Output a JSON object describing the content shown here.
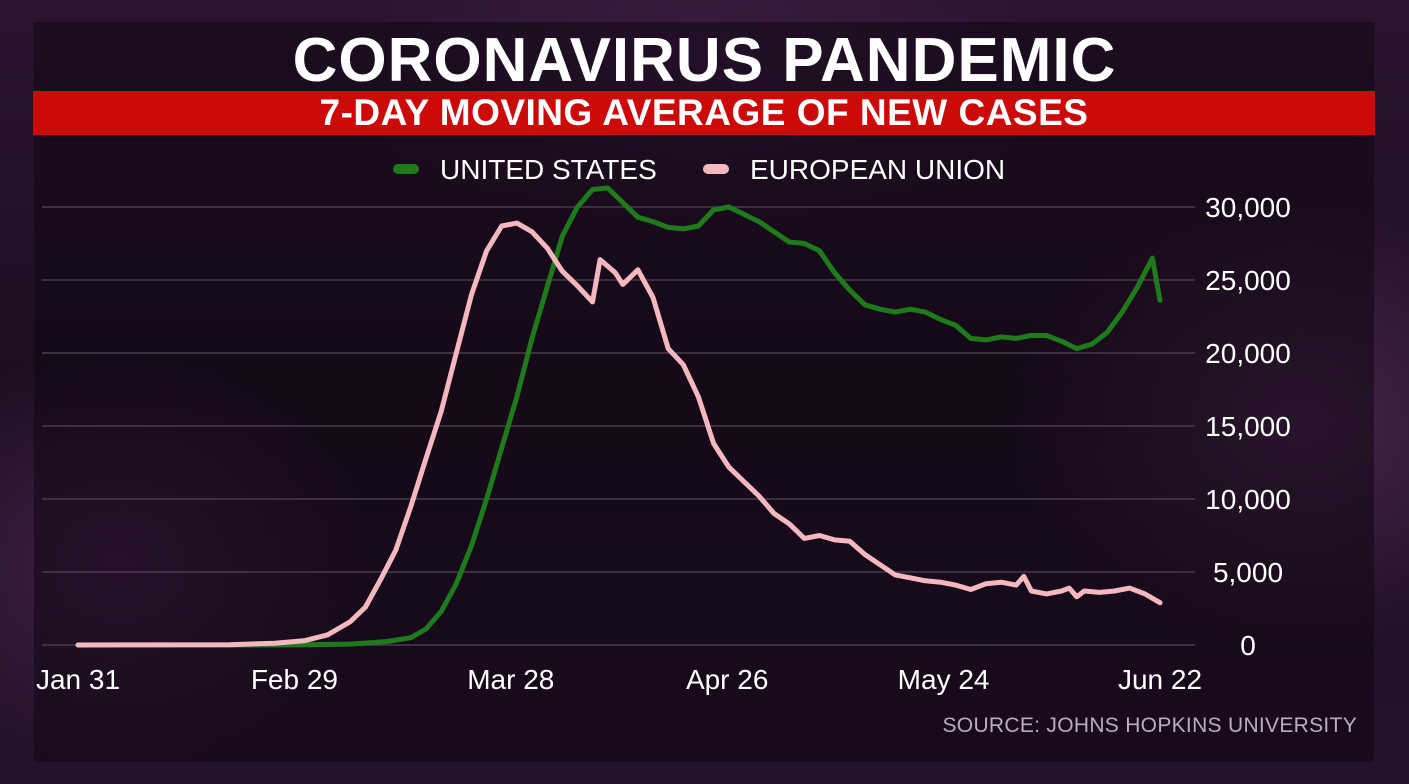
{
  "header": {
    "title": "CORONAVIRUS PANDEMIC",
    "subtitle": "7-DAY MOVING AVERAGE OF NEW CASES"
  },
  "source": "SOURCE: JOHNS HOPKINS UNIVERSITY",
  "colors": {
    "background": "#1c0e20",
    "subtitle_bar": "#cc0a0a",
    "us_line": "#1e7a1a",
    "eu_line": "#f5b8bf",
    "grid": "#4a3a4e"
  },
  "chart_data": {
    "type": "line",
    "title": "7-DAY MOVING AVERAGE OF NEW CASES",
    "xlabel": "",
    "ylabel": "",
    "x_tick_labels": [
      "Jan 31",
      "Feb 29",
      "Mar 28",
      "Apr 26",
      "May 24",
      "Jun 22"
    ],
    "x_range": [
      "2020-01-31",
      "2020-06-22"
    ],
    "y_ticks": [
      0,
      5000,
      10000,
      15000,
      20000,
      25000,
      30000
    ],
    "y_tick_labels": [
      "0",
      "5,000",
      "10,000",
      "15,000",
      "20,000",
      "25,000",
      "30,000"
    ],
    "ylim": [
      0,
      30000
    ],
    "y_axis_side": "right",
    "grid": "horizontal",
    "legend": {
      "placement": "top-center",
      "entries": [
        "UNITED STATES",
        "EUROPEAN UNION"
      ]
    },
    "series": [
      {
        "name": "UNITED STATES",
        "color": "#1e7a1a",
        "points": [
          [
            "2020-01-31",
            0
          ],
          [
            "2020-02-15",
            0
          ],
          [
            "2020-02-29",
            10
          ],
          [
            "2020-03-07",
            60
          ],
          [
            "2020-03-12",
            250
          ],
          [
            "2020-03-15",
            500
          ],
          [
            "2020-03-17",
            1100
          ],
          [
            "2020-03-19",
            2300
          ],
          [
            "2020-03-21",
            4200
          ],
          [
            "2020-03-23",
            6800
          ],
          [
            "2020-03-25",
            10000
          ],
          [
            "2020-03-27",
            13500
          ],
          [
            "2020-03-29",
            17000
          ],
          [
            "2020-03-31",
            21000
          ],
          [
            "2020-04-02",
            24500
          ],
          [
            "2020-04-04",
            28000
          ],
          [
            "2020-04-06",
            30000
          ],
          [
            "2020-04-08",
            31200
          ],
          [
            "2020-04-10",
            31300
          ],
          [
            "2020-04-12",
            30300
          ],
          [
            "2020-04-14",
            29300
          ],
          [
            "2020-04-16",
            29000
          ],
          [
            "2020-04-18",
            28600
          ],
          [
            "2020-04-20",
            28500
          ],
          [
            "2020-04-22",
            28700
          ],
          [
            "2020-04-24",
            29800
          ],
          [
            "2020-04-26",
            30000
          ],
          [
            "2020-04-28",
            29500
          ],
          [
            "2020-04-30",
            29000
          ],
          [
            "2020-05-02",
            28300
          ],
          [
            "2020-05-04",
            27600
          ],
          [
            "2020-05-06",
            27500
          ],
          [
            "2020-05-08",
            27000
          ],
          [
            "2020-05-10",
            25500
          ],
          [
            "2020-05-12",
            24300
          ],
          [
            "2020-05-14",
            23300
          ],
          [
            "2020-05-16",
            23000
          ],
          [
            "2020-05-18",
            22800
          ],
          [
            "2020-05-20",
            23000
          ],
          [
            "2020-05-22",
            22800
          ],
          [
            "2020-05-24",
            22300
          ],
          [
            "2020-05-26",
            21900
          ],
          [
            "2020-05-28",
            21000
          ],
          [
            "2020-05-30",
            20900
          ],
          [
            "2020-06-01",
            21100
          ],
          [
            "2020-06-03",
            21000
          ],
          [
            "2020-06-05",
            21200
          ],
          [
            "2020-06-07",
            21200
          ],
          [
            "2020-06-09",
            20800
          ],
          [
            "2020-06-11",
            20300
          ],
          [
            "2020-06-13",
            20600
          ],
          [
            "2020-06-15",
            21400
          ],
          [
            "2020-06-17",
            22800
          ],
          [
            "2020-06-19",
            24500
          ],
          [
            "2020-06-21",
            26500
          ],
          [
            "2020-06-22",
            23600
          ]
        ]
      },
      {
        "name": "EUROPEAN UNION",
        "color": "#f5b8bf",
        "points": [
          [
            "2020-01-31",
            0
          ],
          [
            "2020-02-20",
            20
          ],
          [
            "2020-02-26",
            120
          ],
          [
            "2020-03-01",
            300
          ],
          [
            "2020-03-04",
            700
          ],
          [
            "2020-03-07",
            1600
          ],
          [
            "2020-03-09",
            2600
          ],
          [
            "2020-03-11",
            4500
          ],
          [
            "2020-03-13",
            6500
          ],
          [
            "2020-03-15",
            9500
          ],
          [
            "2020-03-17",
            12800
          ],
          [
            "2020-03-19",
            16000
          ],
          [
            "2020-03-21",
            20000
          ],
          [
            "2020-03-23",
            24000
          ],
          [
            "2020-03-25",
            27000
          ],
          [
            "2020-03-27",
            28700
          ],
          [
            "2020-03-29",
            28900
          ],
          [
            "2020-03-31",
            28300
          ],
          [
            "2020-04-02",
            27200
          ],
          [
            "2020-04-04",
            25600
          ],
          [
            "2020-04-06",
            24600
          ],
          [
            "2020-04-08",
            23500
          ],
          [
            "2020-04-09",
            26400
          ],
          [
            "2020-04-11",
            25500
          ],
          [
            "2020-04-12",
            24700
          ],
          [
            "2020-04-14",
            25700
          ],
          [
            "2020-04-16",
            23800
          ],
          [
            "2020-04-18",
            20300
          ],
          [
            "2020-04-20",
            19200
          ],
          [
            "2020-04-22",
            17000
          ],
          [
            "2020-04-24",
            13800
          ],
          [
            "2020-04-26",
            12200
          ],
          [
            "2020-04-28",
            11200
          ],
          [
            "2020-04-30",
            10200
          ],
          [
            "2020-05-02",
            9000
          ],
          [
            "2020-05-04",
            8300
          ],
          [
            "2020-05-06",
            7300
          ],
          [
            "2020-05-08",
            7500
          ],
          [
            "2020-05-10",
            7200
          ],
          [
            "2020-05-12",
            7100
          ],
          [
            "2020-05-14",
            6200
          ],
          [
            "2020-05-16",
            5500
          ],
          [
            "2020-05-18",
            4800
          ],
          [
            "2020-05-20",
            4600
          ],
          [
            "2020-05-22",
            4400
          ],
          [
            "2020-05-24",
            4300
          ],
          [
            "2020-05-26",
            4100
          ],
          [
            "2020-05-28",
            3800
          ],
          [
            "2020-05-30",
            4200
          ],
          [
            "2020-06-01",
            4300
          ],
          [
            "2020-06-03",
            4100
          ],
          [
            "2020-06-04",
            4700
          ],
          [
            "2020-06-05",
            3700
          ],
          [
            "2020-06-07",
            3500
          ],
          [
            "2020-06-09",
            3700
          ],
          [
            "2020-06-10",
            3900
          ],
          [
            "2020-06-11",
            3300
          ],
          [
            "2020-06-12",
            3700
          ],
          [
            "2020-06-14",
            3600
          ],
          [
            "2020-06-16",
            3700
          ],
          [
            "2020-06-18",
            3900
          ],
          [
            "2020-06-20",
            3500
          ],
          [
            "2020-06-22",
            2900
          ]
        ]
      }
    ]
  }
}
